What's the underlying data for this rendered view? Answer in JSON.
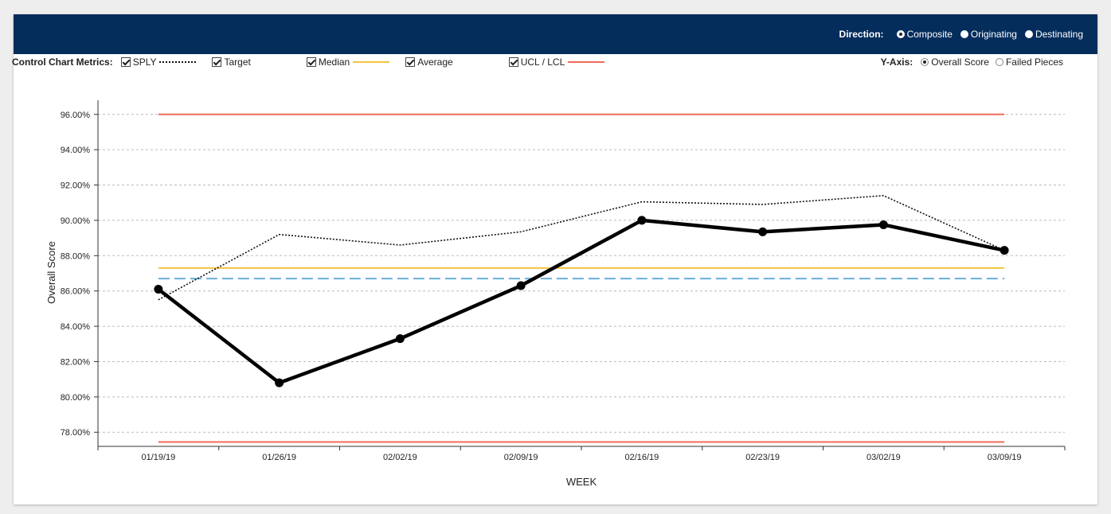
{
  "header": {
    "direction_label": "Direction:",
    "options": [
      {
        "label": "Composite",
        "selected": true
      },
      {
        "label": "Originating",
        "selected": false
      },
      {
        "label": "Destinating",
        "selected": false
      }
    ]
  },
  "toolbar": {
    "metrics_label": "Control Chart Metrics:",
    "metrics": [
      {
        "label": "SPLY",
        "checked": true,
        "color": "#111111",
        "style": "dotted"
      },
      {
        "label": "Target",
        "checked": true,
        "color": "#3cba6a",
        "style": "dashed"
      },
      {
        "label": "Median",
        "checked": true,
        "color": "#f2c53d",
        "style": "solid"
      },
      {
        "label": "Average",
        "checked": true,
        "color": "#6aaedc",
        "style": "dashed"
      },
      {
        "label": "UCL / LCL",
        "checked": true,
        "color": "#ef6b5a",
        "style": "solid"
      }
    ],
    "yaxis_label": "Y-Axis:",
    "yaxis_options": [
      {
        "label": "Overall Score",
        "selected": true
      },
      {
        "label": "Failed Pieces",
        "selected": false
      }
    ]
  },
  "chart_data": {
    "type": "line",
    "xlabel": "WEEK",
    "ylabel": "Overall Score",
    "categories": [
      "01/19/19",
      "01/26/19",
      "02/02/19",
      "02/09/19",
      "02/16/19",
      "02/23/19",
      "03/02/19",
      "03/09/19"
    ],
    "yticks": [
      "78.00%",
      "80.00%",
      "82.00%",
      "84.00%",
      "86.00%",
      "88.00%",
      "90.00%",
      "92.00%",
      "94.00%",
      "96.00%"
    ],
    "ylim": [
      77.2,
      96.8
    ],
    "grid": true,
    "series": [
      {
        "name": "Overall Score",
        "color": "#000000",
        "values": [
          86.1,
          80.8,
          83.3,
          86.3,
          90.0,
          89.35,
          89.75,
          88.3
        ]
      },
      {
        "name": "SPLY",
        "color": "#111111",
        "values": [
          85.5,
          89.2,
          88.6,
          89.35,
          91.05,
          90.9,
          91.4,
          88.3
        ]
      }
    ],
    "reference_lines": {
      "ucl": {
        "value": 96.0,
        "color": "#ef6b5a"
      },
      "lcl": {
        "value": 77.45,
        "color": "#ef6b5a"
      },
      "median": {
        "value": 87.3,
        "color": "#f2c53d"
      },
      "average": {
        "value": 86.7,
        "color": "#6aaedc"
      }
    }
  }
}
